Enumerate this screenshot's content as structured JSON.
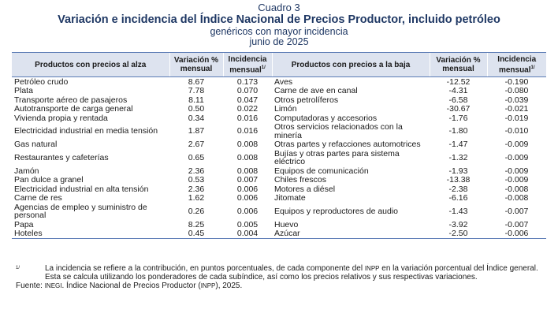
{
  "header": {
    "label": "Cuadro 3",
    "title": "Variación e incidencia del Índice Nacional de Precios Productor, incluido petróleo",
    "subtitle": "genéricos con mayor incidencia",
    "period": "junio de 2025"
  },
  "columns": {
    "up_products": "Productos con precios al alza",
    "variation": "Variación %",
    "variation_2": "mensual",
    "incidence": "Incidencia",
    "incidence_2": "mensual",
    "incidence_note": "1/",
    "down_products": "Productos con precios a la baja"
  },
  "rows": [
    {
      "up": "Petróleo crudo",
      "up_var": "8.67",
      "up_inc": "0.173",
      "down": "Aves",
      "down_var": "-12.52",
      "down_inc": "-0.190"
    },
    {
      "up": "Plata",
      "up_var": "7.78",
      "up_inc": "0.070",
      "down": "Carne de ave en canal",
      "down_var": "-4.31",
      "down_inc": "-0.080"
    },
    {
      "up": "Transporte aéreo de pasajeros",
      "up_var": "8.11",
      "up_inc": "0.047",
      "down": "Otros petrolíferos",
      "down_var": "-6.58",
      "down_inc": "-0.039"
    },
    {
      "up": "Autotransporte de carga general",
      "up_var": "0.50",
      "up_inc": "0.022",
      "down": "Limón",
      "down_var": "-30.67",
      "down_inc": "-0.021"
    },
    {
      "up": "Vivienda propia y rentada",
      "up_var": "0.34",
      "up_inc": "0.016",
      "down": "Computadoras y accesorios",
      "down_var": "-1.76",
      "down_inc": "-0.019"
    },
    {
      "up": "Electricidad industrial en media tensión",
      "up_var": "1.87",
      "up_inc": "0.016",
      "down": "Otros servicios relacionados con la minería",
      "down_var": "-1.80",
      "down_inc": "-0.010",
      "tall": true
    },
    {
      "up": "Gas natural",
      "up_var": "2.67",
      "up_inc": "0.008",
      "down": "Otras partes y refacciones automotrices",
      "down_var": "-1.47",
      "down_inc": "-0.009"
    },
    {
      "up": "Restaurantes y cafeterías",
      "up_var": "0.65",
      "up_inc": "0.008",
      "down": "Bujías y otras partes para sistema eléctrico",
      "down_var": "-1.32",
      "down_inc": "-0.009",
      "tall": true
    },
    {
      "up": "Jamón",
      "up_var": "2.36",
      "up_inc": "0.008",
      "down": "Equipos de comunicación",
      "down_var": "-1.93",
      "down_inc": "-0.009"
    },
    {
      "up": "Pan dulce a granel",
      "up_var": "0.53",
      "up_inc": "0.007",
      "down": "Chiles frescos",
      "down_var": "-13.38",
      "down_inc": "-0.009"
    },
    {
      "up": "Electricidad industrial en alta tensión",
      "up_var": "2.36",
      "up_inc": "0.006",
      "down": "Motores a diésel",
      "down_var": "-2.38",
      "down_inc": "-0.008"
    },
    {
      "up": "Carne de res",
      "up_var": "1.62",
      "up_inc": "0.006",
      "down": "Jitomate",
      "down_var": "-6.16",
      "down_inc": "-0.008"
    },
    {
      "up": "Agencias de empleo y suministro de personal",
      "up_var": "0.26",
      "up_inc": "0.006",
      "down": "Equipos y reproductores de audio",
      "down_var": "-1.43",
      "down_inc": "-0.007",
      "tall": true
    },
    {
      "up": "Papa",
      "up_var": "8.25",
      "up_inc": "0.005",
      "down": "Huevo",
      "down_var": "-3.92",
      "down_inc": "-0.007"
    },
    {
      "up": "Hoteles",
      "up_var": "0.45",
      "up_inc": "0.004",
      "down": "Azúcar",
      "down_var": "-2.50",
      "down_inc": "-0.006"
    }
  ],
  "notes": {
    "mark": "1/",
    "text_a": "La incidencia se refiere a la contribución, en puntos porcentuales, de cada componente del",
    "inpp": "INPP",
    "text_b": "en la variación porcentual del Índice general. Esta se calcula utilizando los ponderadores de cada subíndice, así como los precios relativos y sus respectivas variaciones.",
    "source_a": "Fuente:",
    "inegi": "INEGI",
    "source_b": ". Índice Nacional de Precios Productor (",
    "inpp2": "INPP",
    "source_c": "), 2025."
  }
}
